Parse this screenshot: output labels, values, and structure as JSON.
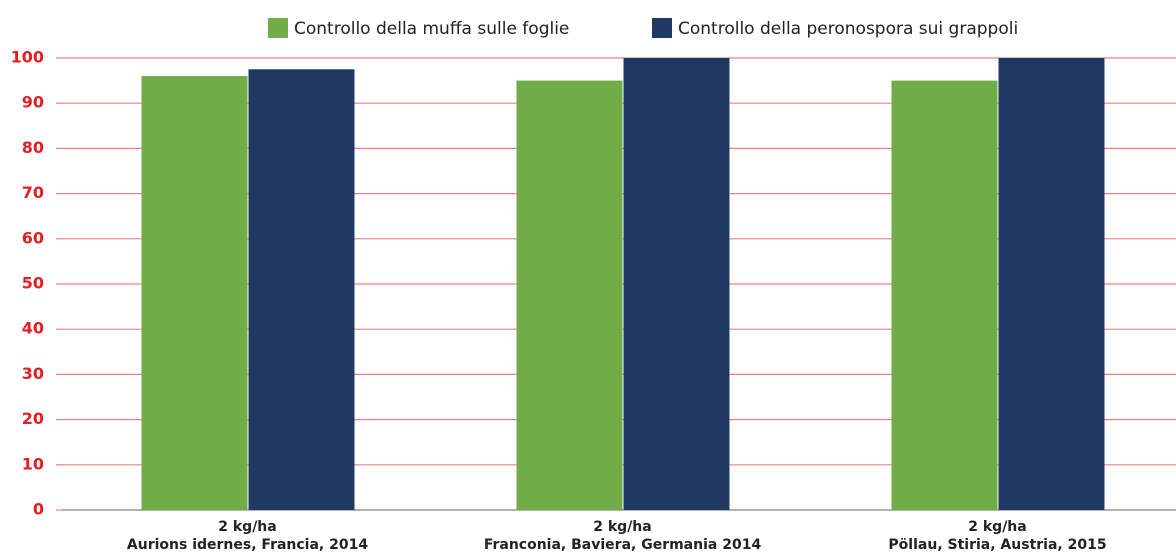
{
  "chart_data": {
    "type": "bar",
    "categories": [
      [
        "2 kg/ha",
        "Aurions idernes, Francia, 2014"
      ],
      [
        "2 kg/ha",
        "Franconia, Baviera, Germania 2014"
      ],
      [
        "2 kg/ha",
        "Pöllau, Stiria, Austria, 2015"
      ]
    ],
    "series": [
      {
        "name": "Controllo della muffa sulle foglie",
        "color": "#70ad47",
        "values": [
          96,
          95,
          95
        ]
      },
      {
        "name": "Controllo della peronospora sui grappoli",
        "color": "#1f3864",
        "values": [
          97.5,
          100,
          100
        ]
      }
    ],
    "ylim": [
      0,
      100
    ],
    "yticks": [
      0,
      10,
      20,
      30,
      40,
      50,
      60,
      70,
      80,
      90,
      100
    ],
    "grid": true
  }
}
